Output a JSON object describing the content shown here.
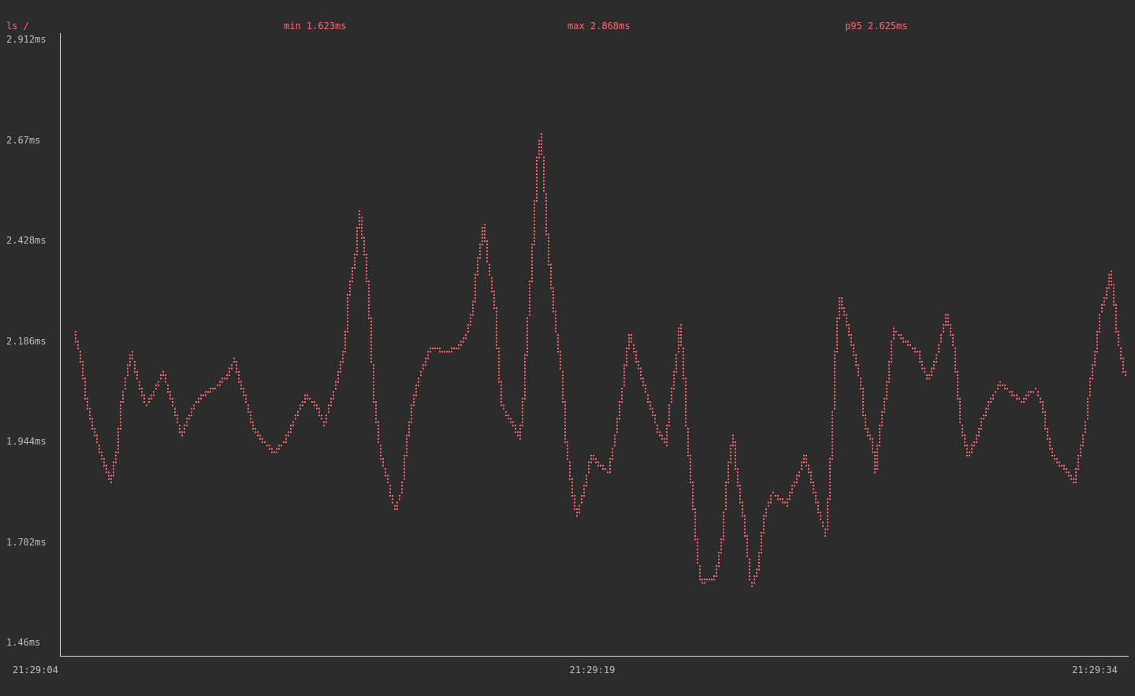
{
  "header": {
    "title": "ls /",
    "min": "min 1.623ms",
    "max": "max 2.868ms",
    "p95": "p95 2.625ms"
  },
  "colors": {
    "background": "#2c2c2c",
    "series": "#ff6670",
    "axis": "#d8d8d8",
    "text": "#bdbdbd"
  },
  "chart_data": {
    "type": "line",
    "style": "braille-dot terminal plot",
    "ylim": [
      1.46,
      2.912
    ],
    "xlim": [
      "21:29:04",
      "21:29:34"
    ],
    "y_ticks": [
      "2.912ms",
      "2.67ms",
      "2.428ms",
      "2.186ms",
      "1.944ms",
      "1.702ms",
      "1.46ms"
    ],
    "y_tick_values": [
      2.912,
      2.67,
      2.428,
      2.186,
      1.944,
      1.702,
      1.46
    ],
    "x_ticks": [
      "21:29:04",
      "21:29:19",
      "21:29:34"
    ],
    "grid": false,
    "points": [
      [
        "21:29:04.4",
        2.206
      ],
      [
        "21:29:04.6",
        2.134
      ],
      [
        "21:29:04.7",
        2.058
      ],
      [
        "21:29:04.9",
        1.982
      ],
      [
        "21:29:05.1",
        1.925
      ],
      [
        "21:29:05.3",
        1.872
      ],
      [
        "21:29:05.4",
        1.845
      ],
      [
        "21:29:05.6",
        1.925
      ],
      [
        "21:29:05.7",
        2.029
      ],
      [
        "21:29:05.9",
        2.124
      ],
      [
        "21:29:06.0",
        2.162
      ],
      [
        "21:29:06.1",
        2.115
      ],
      [
        "21:29:06.3",
        2.058
      ],
      [
        "21:29:06.4",
        2.029
      ],
      [
        "21:29:06.6",
        2.058
      ],
      [
        "21:29:06.7",
        2.077
      ],
      [
        "21:29:06.9",
        2.111
      ],
      [
        "21:29:07.0",
        2.077
      ],
      [
        "21:29:07.2",
        2.02
      ],
      [
        "21:29:07.4",
        1.957
      ],
      [
        "21:29:07.6",
        2.001
      ],
      [
        "21:29:07.8",
        2.039
      ],
      [
        "21:29:08.1",
        2.062
      ],
      [
        "21:29:08.4",
        2.077
      ],
      [
        "21:29:08.7",
        2.105
      ],
      [
        "21:29:08.9",
        2.143
      ],
      [
        "21:29:09.0",
        2.096
      ],
      [
        "21:29:09.2",
        2.048
      ],
      [
        "21:29:09.4",
        1.982
      ],
      [
        "21:29:09.6",
        1.954
      ],
      [
        "21:29:10.0",
        1.916
      ],
      [
        "21:29:10.3",
        1.944
      ],
      [
        "21:29:10.5",
        1.982
      ],
      [
        "21:29:10.7",
        2.02
      ],
      [
        "21:29:10.9",
        2.054
      ],
      [
        "21:29:11.2",
        2.029
      ],
      [
        "21:29:11.4",
        1.986
      ],
      [
        "21:29:11.6",
        2.039
      ],
      [
        "21:29:11.8",
        2.1
      ],
      [
        "21:29:12.0",
        2.172
      ],
      [
        "21:29:12.1",
        2.305
      ],
      [
        "21:29:12.3",
        2.4
      ],
      [
        "21:29:12.4",
        2.498
      ],
      [
        "21:29:12.6",
        2.362
      ],
      [
        "21:29:12.7",
        2.229
      ],
      [
        "21:29:12.8",
        2.058
      ],
      [
        "21:29:13.0",
        1.906
      ],
      [
        "21:29:13.2",
        1.849
      ],
      [
        "21:29:13.3",
        1.811
      ],
      [
        "21:29:13.4",
        1.777
      ],
      [
        "21:29:13.6",
        1.83
      ],
      [
        "21:29:13.7",
        1.925
      ],
      [
        "21:29:13.9",
        2.039
      ],
      [
        "21:29:14.1",
        2.105
      ],
      [
        "21:29:14.4",
        2.168
      ],
      [
        "21:29:14.9",
        2.16
      ],
      [
        "21:29:15.2",
        2.172
      ],
      [
        "21:29:15.4",
        2.2
      ],
      [
        "21:29:15.6",
        2.267
      ],
      [
        "21:29:15.7",
        2.362
      ],
      [
        "21:29:15.9",
        2.466
      ],
      [
        "21:29:16.0",
        2.381
      ],
      [
        "21:29:16.2",
        2.276
      ],
      [
        "21:29:16.3",
        2.134
      ],
      [
        "21:29:16.4",
        2.029
      ],
      [
        "21:29:16.6",
        2.001
      ],
      [
        "21:29:16.8",
        1.972
      ],
      [
        "21:29:16.9",
        1.948
      ],
      [
        "21:29:17.0",
        2.039
      ],
      [
        "21:29:17.1",
        2.191
      ],
      [
        "21:29:17.3",
        2.456
      ],
      [
        "21:29:17.4",
        2.627
      ],
      [
        "21:29:17.5",
        2.684
      ],
      [
        "21:29:17.6",
        2.551
      ],
      [
        "21:29:17.7",
        2.4
      ],
      [
        "21:29:17.9",
        2.229
      ],
      [
        "21:29:18.1",
        2.096
      ],
      [
        "21:29:18.2",
        1.944
      ],
      [
        "21:29:18.4",
        1.811
      ],
      [
        "21:29:18.5",
        1.764
      ],
      [
        "21:29:18.7",
        1.821
      ],
      [
        "21:29:18.9",
        1.91
      ],
      [
        "21:29:19.1",
        1.891
      ],
      [
        "21:29:19.4",
        1.868
      ],
      [
        "21:29:19.6",
        1.963
      ],
      [
        "21:29:19.8",
        2.077
      ],
      [
        "21:29:19.9",
        2.153
      ],
      [
        "21:29:20.0",
        2.2
      ],
      [
        "21:29:20.2",
        2.134
      ],
      [
        "21:29:20.4",
        2.077
      ],
      [
        "21:29:20.6",
        2.02
      ],
      [
        "21:29:20.8",
        1.967
      ],
      [
        "21:29:21.0",
        1.938
      ],
      [
        "21:29:21.1",
        2.02
      ],
      [
        "21:29:21.3",
        2.134
      ],
      [
        "21:29:21.4",
        2.225
      ],
      [
        "21:29:21.5",
        2.134
      ],
      [
        "21:29:21.6",
        1.963
      ],
      [
        "21:29:21.8",
        1.773
      ],
      [
        "21:29:21.9",
        1.659
      ],
      [
        "21:29:22.0",
        1.602
      ],
      [
        "21:29:22.2",
        1.612
      ],
      [
        "21:29:22.4",
        1.616
      ],
      [
        "21:29:22.6",
        1.716
      ],
      [
        "21:29:22.7",
        1.83
      ],
      [
        "21:29:22.8",
        1.906
      ],
      [
        "21:29:22.9",
        1.957
      ],
      [
        "21:29:23.0",
        1.868
      ],
      [
        "21:29:23.2",
        1.754
      ],
      [
        "21:29:23.3",
        1.678
      ],
      [
        "21:29:23.4",
        1.593
      ],
      [
        "21:29:23.6",
        1.64
      ],
      [
        "21:29:23.7",
        1.716
      ],
      [
        "21:29:23.8",
        1.773
      ],
      [
        "21:29:24.0",
        1.821
      ],
      [
        "21:29:24.4",
        1.792
      ],
      [
        "21:29:24.6",
        1.84
      ],
      [
        "21:29:24.8",
        1.878
      ],
      [
        "21:29:24.9",
        1.91
      ],
      [
        "21:29:25.1",
        1.849
      ],
      [
        "21:29:25.3",
        1.773
      ],
      [
        "21:29:25.5",
        1.72
      ],
      [
        "21:29:25.6",
        1.83
      ],
      [
        "21:29:25.7",
        2.001
      ],
      [
        "21:29:25.8",
        2.21
      ],
      [
        "21:29:25.9",
        2.289
      ],
      [
        "21:29:26.1",
        2.229
      ],
      [
        "21:29:26.3",
        2.153
      ],
      [
        "21:29:26.5",
        2.077
      ],
      [
        "21:29:26.6",
        1.982
      ],
      [
        "21:29:26.8",
        1.944
      ],
      [
        "21:29:26.9",
        1.868
      ],
      [
        "21:29:27.0",
        1.963
      ],
      [
        "21:29:27.2",
        2.058
      ],
      [
        "21:29:27.3",
        2.134
      ],
      [
        "21:29:27.4",
        2.214
      ],
      [
        "21:29:27.7",
        2.187
      ],
      [
        "21:29:28.1",
        2.157
      ],
      [
        "21:29:28.2",
        2.122
      ],
      [
        "21:29:28.4",
        2.092
      ],
      [
        "21:29:28.6",
        2.143
      ],
      [
        "21:29:28.8",
        2.219
      ],
      [
        "21:29:28.9",
        2.248
      ],
      [
        "21:29:29.1",
        2.172
      ],
      [
        "21:29:29.2",
        2.077
      ],
      [
        "21:29:29.3",
        1.982
      ],
      [
        "21:29:29.5",
        1.91
      ],
      [
        "21:29:29.7",
        1.944
      ],
      [
        "21:29:29.9",
        1.997
      ],
      [
        "21:29:30.1",
        2.039
      ],
      [
        "21:29:30.4",
        2.084
      ],
      [
        "21:29:30.7",
        2.062
      ],
      [
        "21:29:31.0",
        2.039
      ],
      [
        "21:29:31.2",
        2.058
      ],
      [
        "21:29:31.4",
        2.071
      ],
      [
        "21:29:31.6",
        2.029
      ],
      [
        "21:29:31.7",
        1.963
      ],
      [
        "21:29:31.9",
        1.906
      ],
      [
        "21:29:32.2",
        1.878
      ],
      [
        "21:29:32.5",
        1.845
      ],
      [
        "21:29:32.6",
        1.906
      ],
      [
        "21:29:32.8",
        1.982
      ],
      [
        "21:29:32.9",
        2.067
      ],
      [
        "21:29:33.1",
        2.172
      ],
      [
        "21:29:33.2",
        2.248
      ],
      [
        "21:29:33.4",
        2.305
      ],
      [
        "21:29:33.5",
        2.354
      ],
      [
        "21:29:33.6",
        2.286
      ],
      [
        "21:29:33.7",
        2.191
      ],
      [
        "21:29:33.9",
        2.1
      ]
    ]
  }
}
